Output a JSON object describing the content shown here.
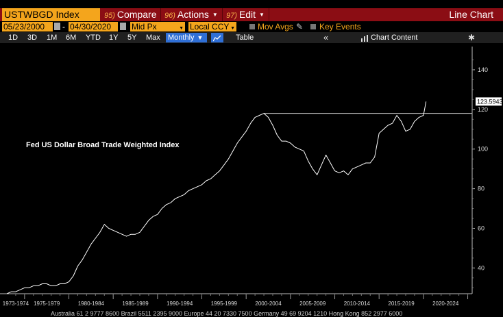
{
  "header": {
    "ticker": "USTWBGD Index",
    "compare": {
      "num": "95)",
      "label": "Compare"
    },
    "actions": {
      "num": "96)",
      "label": "Actions"
    },
    "edit": {
      "num": "97)",
      "label": "Edit"
    },
    "chart_type": "Line Chart"
  },
  "controls": {
    "start_date": "05/23/2000",
    "end_date": "04/30/2020",
    "price_type": "Mid Px",
    "currency": "Local CCY",
    "mov_avgs": "Mov Avgs",
    "key_events": "Key Events"
  },
  "toolbar": {
    "ranges": [
      "1D",
      "3D",
      "1M",
      "6M",
      "YTD",
      "1Y",
      "5Y",
      "Max"
    ],
    "frequency": "Monthly",
    "table": "Table",
    "chart_content": "Chart Content"
  },
  "chart_data": {
    "type": "line",
    "title": "Fed US Dollar Broad Trade Weighted Index",
    "x_tick_labels": [
      "1973-1974",
      "1975-1979",
      "1980-1984",
      "1985-1989",
      "1990-1994",
      "1995-1999",
      "2000-2004",
      "2005-2009",
      "2010-2014",
      "2015-2019",
      "2020-2024"
    ],
    "y_ticks": [
      40,
      60,
      80,
      100,
      120,
      140
    ],
    "ylim": [
      27,
      150
    ],
    "xlim": [
      1973.0,
      2025.5
    ],
    "last_value": "123.5943",
    "horizontal_line_value": 118,
    "horizontal_line_start_year": 2002.0,
    "series": [
      {
        "color": "#ffffff",
        "x": [
          1973.0,
          1973.5,
          1974.0,
          1974.5,
          1975.0,
          1975.5,
          1976.0,
          1976.5,
          1977.0,
          1977.5,
          1978.0,
          1978.5,
          1979.0,
          1979.5,
          1980.0,
          1980.5,
          1981.0,
          1981.5,
          1982.0,
          1982.5,
          1983.0,
          1983.5,
          1984.0,
          1984.5,
          1985.0,
          1985.5,
          1986.0,
          1986.5,
          1987.0,
          1987.5,
          1988.0,
          1988.5,
          1989.0,
          1989.5,
          1990.0,
          1990.5,
          1991.0,
          1991.5,
          1992.0,
          1992.5,
          1993.0,
          1993.5,
          1994.0,
          1994.5,
          1995.0,
          1995.5,
          1996.0,
          1996.5,
          1997.0,
          1997.5,
          1998.0,
          1998.5,
          1999.0,
          1999.5,
          2000.0,
          2000.5,
          2001.0,
          2001.5,
          2002.0,
          2002.5,
          2003.0,
          2003.5,
          2004.0,
          2004.5,
          2005.0,
          2005.5,
          2006.0,
          2006.5,
          2007.0,
          2007.5,
          2008.0,
          2008.5,
          2009.0,
          2009.5,
          2010.0,
          2010.5,
          2011.0,
          2011.5,
          2012.0,
          2012.5,
          2013.0,
          2013.5,
          2014.0,
          2014.5,
          2015.0,
          2015.5,
          2016.0,
          2016.5,
          2017.0,
          2017.5,
          2018.0,
          2018.5,
          2019.0,
          2019.5,
          2020.0,
          2020.3
        ],
        "y": [
          27,
          28,
          28,
          29,
          30,
          30,
          31,
          31,
          32,
          32,
          31,
          31,
          32,
          32,
          33,
          36,
          41,
          44,
          48,
          52,
          55,
          58,
          62,
          60,
          59,
          58,
          57,
          56,
          57,
          57,
          58,
          61,
          64,
          66,
          67,
          70,
          72,
          73,
          75,
          76,
          77,
          79,
          80,
          81,
          82,
          84,
          85,
          87,
          89,
          92,
          95,
          99,
          103,
          106,
          109,
          113,
          116,
          117,
          118,
          116,
          112,
          107,
          104,
          104,
          103,
          101,
          100,
          99,
          94,
          90,
          87,
          92,
          97,
          93,
          89,
          88,
          89,
          87,
          90,
          91,
          92,
          93,
          93,
          96,
          108,
          110,
          112,
          113,
          117,
          114,
          109,
          110,
          114,
          116,
          117,
          124
        ]
      }
    ]
  },
  "footer": "Australia 61 2 9777 8600 Brazil 5511 2395 9000 Europe 44 20 7330 7500 Germany 49 69 9204 1210 Hong Kong 852 2977 6000"
}
